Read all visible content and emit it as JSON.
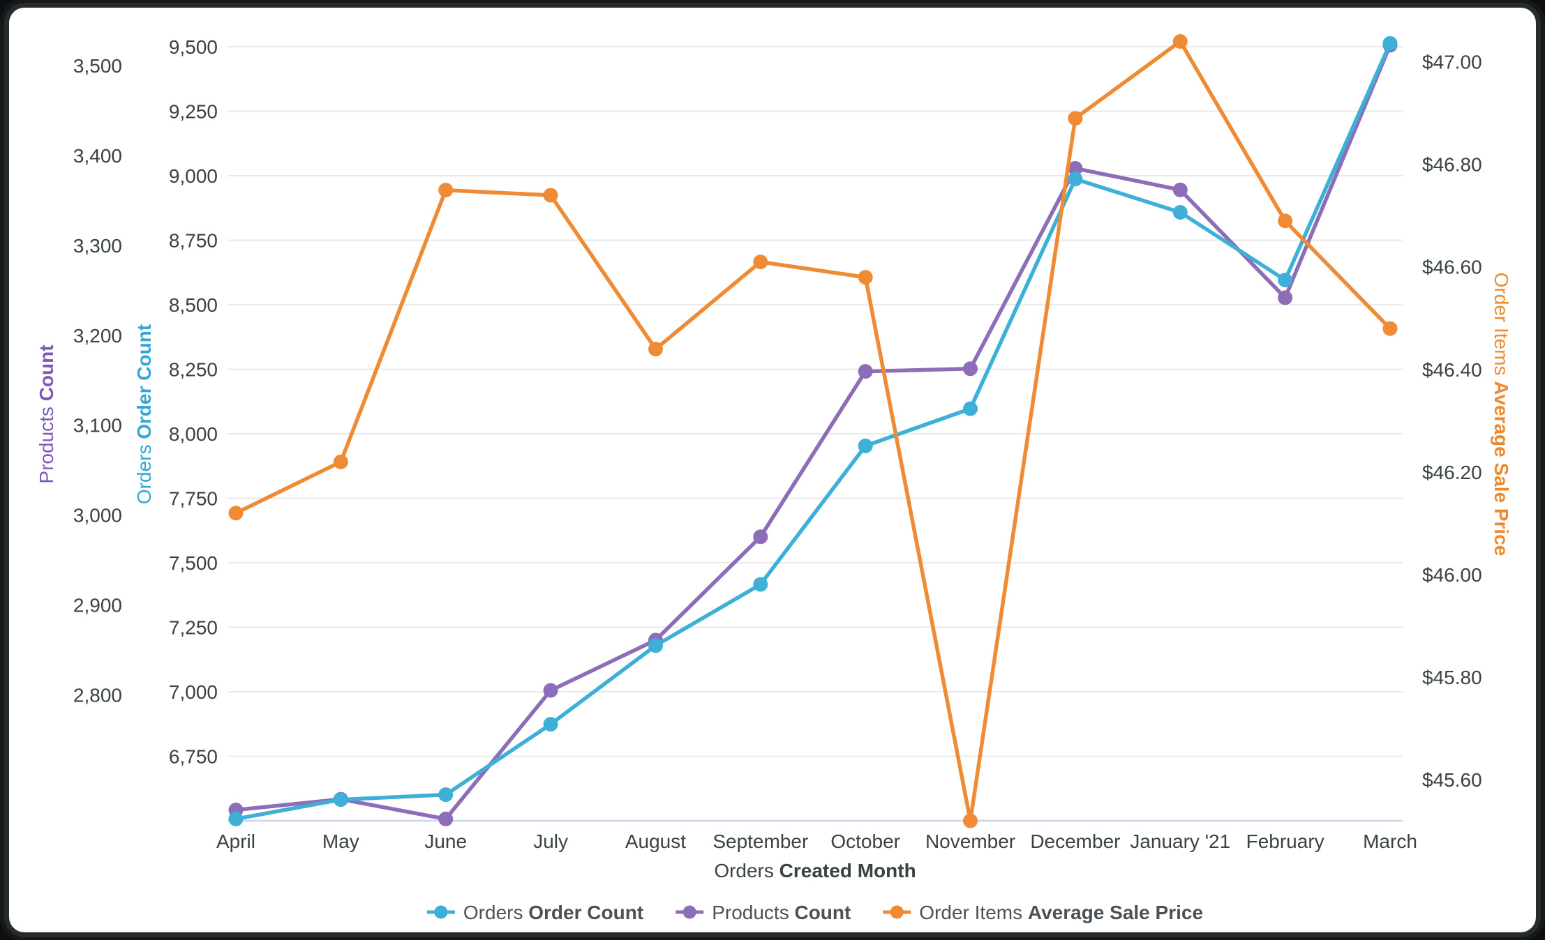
{
  "page": {
    "background": "#0c0e0f",
    "card_background": "#ffffff"
  },
  "chart_data": {
    "type": "line",
    "title": "",
    "x_axis": {
      "title_prefix": "Orders",
      "title": "Created Month",
      "categories": [
        "April",
        "May",
        "June",
        "July",
        "August",
        "September",
        "October",
        "November",
        "December",
        "January '21",
        "February",
        "March"
      ]
    },
    "y_axes": [
      {
        "id": "products",
        "position": "left",
        "title_prefix": "Products",
        "title": "Count",
        "title_color": "#7e58b8",
        "min": 2660,
        "max": 3550,
        "gridlines": false,
        "tick_labels": [
          "3,500",
          "3,400",
          "3,300",
          "3,200",
          "3,100",
          "3,000",
          "2,900",
          "2,800"
        ]
      },
      {
        "id": "orders",
        "position": "left",
        "title_prefix": "Orders",
        "title": "Order Count",
        "title_color": "#33a6d6",
        "min": 6500,
        "max": 9600,
        "gridlines": true,
        "tick_labels": [
          "9,500",
          "9,250",
          "9,000",
          "8,750",
          "8,500",
          "8,250",
          "8,000",
          "7,750",
          "7,500",
          "7,250",
          "7,000",
          "6,750"
        ]
      },
      {
        "id": "price",
        "position": "right",
        "title_prefix": "Order Items",
        "title": "Average Sale Price",
        "title_color": "#ed8a2e",
        "min": 45.52,
        "max": 47.08,
        "gridlines": false,
        "tick_labels": [
          "$47.00",
          "$46.80",
          "$46.60",
          "$46.40",
          "$46.20",
          "$46.00",
          "$45.80",
          "$45.60"
        ]
      }
    ],
    "series": [
      {
        "id": "orders",
        "legend_prefix": "Orders",
        "legend_label": "Order Count",
        "color": "#3eb0d7",
        "axis": "orders",
        "marker": "circle",
        "values": [
          6507,
          6582,
          6601,
          6874,
          7179,
          7416,
          7953,
          8097,
          8987,
          8858,
          8596,
          9513
        ]
      },
      {
        "id": "products",
        "legend_prefix": "Products",
        "legend_label": "Count",
        "color": "#8d6cb8",
        "axis": "products",
        "marker": "circle",
        "values": [
          2672,
          2684,
          2662,
          2805,
          2861,
          2976,
          3160,
          3163,
          3386,
          3362,
          3242,
          3523
        ]
      },
      {
        "id": "price",
        "legend_prefix": "Order Items",
        "legend_label": "Average Sale Price",
        "color": "#ee8b34",
        "axis": "price",
        "marker": "circle",
        "values": [
          46.12,
          46.22,
          46.75,
          46.74,
          46.44,
          46.61,
          46.58,
          45.52,
          46.89,
          47.04,
          46.69,
          46.48
        ]
      }
    ],
    "legend_position": "bottom",
    "styles": {
      "tick_color": "#3a4245",
      "legend_color": "#4b5257",
      "gridline_color": "#e9e9e9",
      "baseline_color": "#ccd6eb"
    }
  }
}
